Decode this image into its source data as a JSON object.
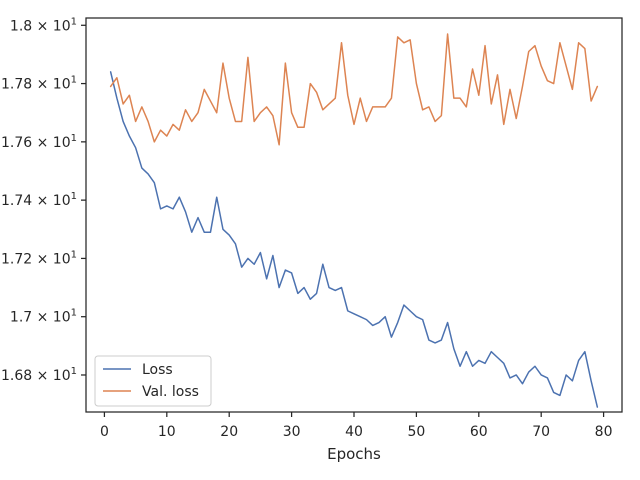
{
  "chart_data": {
    "type": "line",
    "title": "",
    "xlabel": "Epochs",
    "ylabel": "",
    "xlim": [
      -2.95,
      82.95
    ],
    "ylim": [
      16.673,
      18.025
    ],
    "grid": false,
    "legend_position": "lower-left",
    "x_ticks": [
      0,
      10,
      20,
      30,
      40,
      50,
      60,
      70,
      80
    ],
    "x_tick_labels": [
      "0",
      "10",
      "20",
      "30",
      "40",
      "50",
      "60",
      "70",
      "80"
    ],
    "y_ticks": [
      16.8,
      17.0,
      17.2,
      17.4,
      17.6,
      17.8,
      18.0
    ],
    "y_tick_labels": [
      {
        "mantissa": "1.68",
        "exp": "1"
      },
      {
        "mantissa": "1.7",
        "exp": "1"
      },
      {
        "mantissa": "1.72",
        "exp": "1"
      },
      {
        "mantissa": "1.74",
        "exp": "1"
      },
      {
        "mantissa": "1.76",
        "exp": "1"
      },
      {
        "mantissa": "1.78",
        "exp": "1"
      },
      {
        "mantissa": "1.8",
        "exp": "1"
      }
    ],
    "x": [
      1,
      2,
      3,
      4,
      5,
      6,
      7,
      8,
      9,
      10,
      11,
      12,
      13,
      14,
      15,
      16,
      17,
      18,
      19,
      20,
      21,
      22,
      23,
      24,
      25,
      26,
      27,
      28,
      29,
      30,
      31,
      32,
      33,
      34,
      35,
      36,
      37,
      38,
      39,
      40,
      41,
      42,
      43,
      44,
      45,
      46,
      47,
      48,
      49,
      50,
      51,
      52,
      53,
      54,
      55,
      56,
      57,
      58,
      59,
      60,
      61,
      62,
      63,
      64,
      65,
      66,
      67,
      68,
      69,
      70,
      71,
      72,
      73,
      74,
      75,
      76,
      77,
      78,
      79
    ],
    "series": [
      {
        "name": "Loss",
        "color": "#4c72b0",
        "values": [
          17.84,
          17.75,
          17.67,
          17.62,
          17.58,
          17.51,
          17.49,
          17.46,
          17.37,
          17.38,
          17.37,
          17.41,
          17.36,
          17.29,
          17.34,
          17.29,
          17.29,
          17.41,
          17.3,
          17.28,
          17.25,
          17.17,
          17.2,
          17.18,
          17.22,
          17.13,
          17.21,
          17.1,
          17.16,
          17.15,
          17.08,
          17.1,
          17.06,
          17.08,
          17.18,
          17.1,
          17.09,
          17.1,
          17.02,
          17.01,
          17.0,
          16.99,
          16.97,
          16.98,
          17.0,
          16.93,
          16.98,
          17.04,
          17.02,
          17.0,
          16.99,
          16.92,
          16.91,
          16.92,
          16.98,
          16.89,
          16.83,
          16.88,
          16.83,
          16.85,
          16.84,
          16.88,
          16.86,
          16.84,
          16.79,
          16.8,
          16.77,
          16.81,
          16.83,
          16.8,
          16.79,
          16.74,
          16.73,
          16.8,
          16.78,
          16.85,
          16.88,
          16.78,
          16.69
        ]
      },
      {
        "name": "Val. loss",
        "color": "#dd8452",
        "values": [
          17.79,
          17.82,
          17.73,
          17.76,
          17.67,
          17.72,
          17.67,
          17.6,
          17.64,
          17.62,
          17.66,
          17.64,
          17.71,
          17.67,
          17.7,
          17.78,
          17.74,
          17.7,
          17.87,
          17.75,
          17.67,
          17.67,
          17.89,
          17.67,
          17.7,
          17.72,
          17.69,
          17.59,
          17.87,
          17.7,
          17.65,
          17.65,
          17.8,
          17.77,
          17.71,
          17.73,
          17.75,
          17.94,
          17.76,
          17.66,
          17.75,
          17.67,
          17.72,
          17.72,
          17.72,
          17.75,
          17.96,
          17.94,
          17.95,
          17.8,
          17.71,
          17.72,
          17.67,
          17.69,
          17.97,
          17.75,
          17.75,
          17.72,
          17.85,
          17.76,
          17.93,
          17.73,
          17.83,
          17.66,
          17.78,
          17.68,
          17.79,
          17.91,
          17.93,
          17.86,
          17.81,
          17.8,
          17.94,
          17.86,
          17.78,
          17.94,
          17.92,
          17.74,
          17.79
        ]
      }
    ]
  }
}
